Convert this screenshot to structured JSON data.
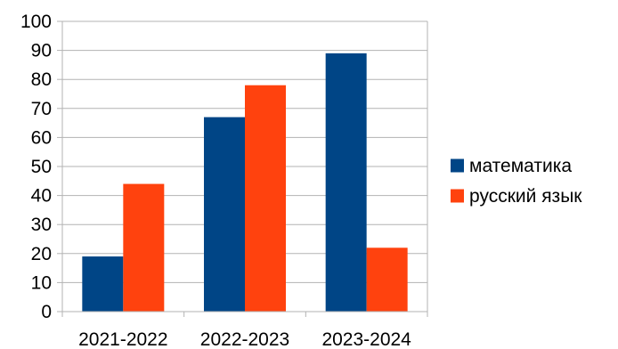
{
  "chart_data": {
    "type": "bar",
    "categories": [
      "2021-2022",
      "2022-2023",
      "2023-2024"
    ],
    "series": [
      {
        "name": "математика",
        "values": [
          19,
          67,
          89
        ],
        "color": "#004586"
      },
      {
        "name": "русский язык",
        "values": [
          44,
          78,
          22
        ],
        "color": "#ff420e"
      }
    ],
    "ylim": [
      0,
      100
    ],
    "yticks": [
      0,
      10,
      20,
      30,
      40,
      50,
      60,
      70,
      80,
      90,
      100
    ],
    "grid": true,
    "legend_position": "right",
    "title": "",
    "xlabel": "",
    "ylabel": ""
  },
  "colors": {
    "grid": "#b3b3b3",
    "axis": "#b3b3b3"
  }
}
